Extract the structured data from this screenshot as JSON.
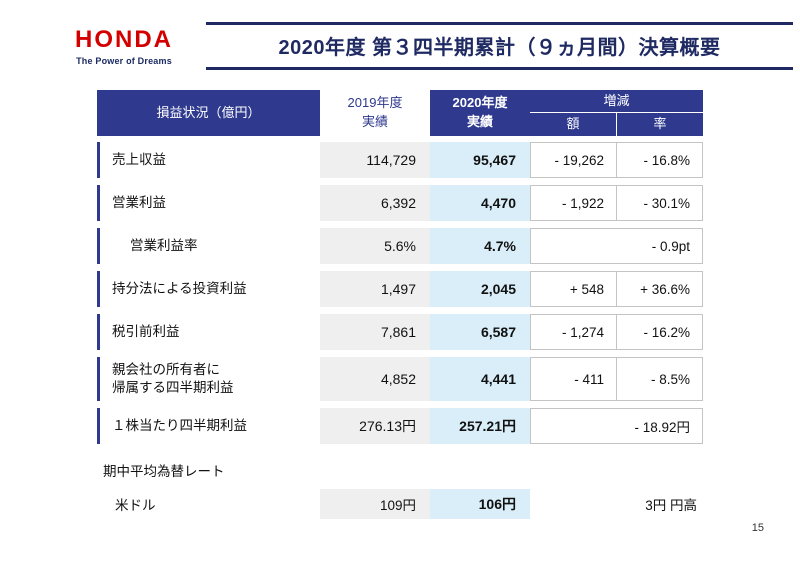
{
  "page": {
    "number": "15"
  },
  "logo": {
    "brand": "HONDA",
    "tagline": "The Power of Dreams"
  },
  "title": "2020年度 第３四半期累計（９ヵ月間）決算概要",
  "colors": {
    "navy_header": "#2f3a8f",
    "title_navy": "#1f2a63",
    "honda_red": "#d40000",
    "fy2020_highlight": "#d9eef8",
    "fy2019_gray": "#efefef"
  },
  "table": {
    "header": {
      "label": "損益状況（億円）",
      "fy2019": "2019年度\n実績",
      "fy2020": "2020年度\n実績",
      "change": "増減",
      "change_amount": "額",
      "change_rate": "率"
    },
    "rows": [
      {
        "label": "売上収益",
        "fy2019": "114,729",
        "fy2020": "95,467",
        "amount": "- 19,262",
        "rate": "- 16.8%"
      },
      {
        "label": "営業利益",
        "fy2019": "6,392",
        "fy2020": "4,470",
        "amount": "- 1,922",
        "rate": "- 30.1%"
      },
      {
        "label": "営業利益率",
        "fy2019": "5.6%",
        "fy2020": "4.7%",
        "amount": "",
        "rate": "- 0.9pt"
      },
      {
        "label": "持分法による投資利益",
        "fy2019": "1,497",
        "fy2020": "2,045",
        "amount": "+ 548",
        "rate": "+ 36.6%"
      },
      {
        "label": "税引前利益",
        "fy2019": "7,861",
        "fy2020": "6,587",
        "amount": "- 1,274",
        "rate": "- 16.2%"
      },
      {
        "label": "親会社の所有者に\n帰属する四半期利益",
        "fy2019": "4,852",
        "fy2020": "4,441",
        "amount": "- 411",
        "rate": "- 8.5%"
      },
      {
        "label": "１株当たり四半期利益",
        "fy2019": "276.13円",
        "fy2020": "257.21円",
        "amount": "",
        "rate": "- 18.92円"
      }
    ],
    "fx": {
      "title": "期中平均為替レート",
      "label": "米ドル",
      "fy2019": "109円",
      "fy2020": "106円",
      "change": "3円 円高"
    }
  }
}
